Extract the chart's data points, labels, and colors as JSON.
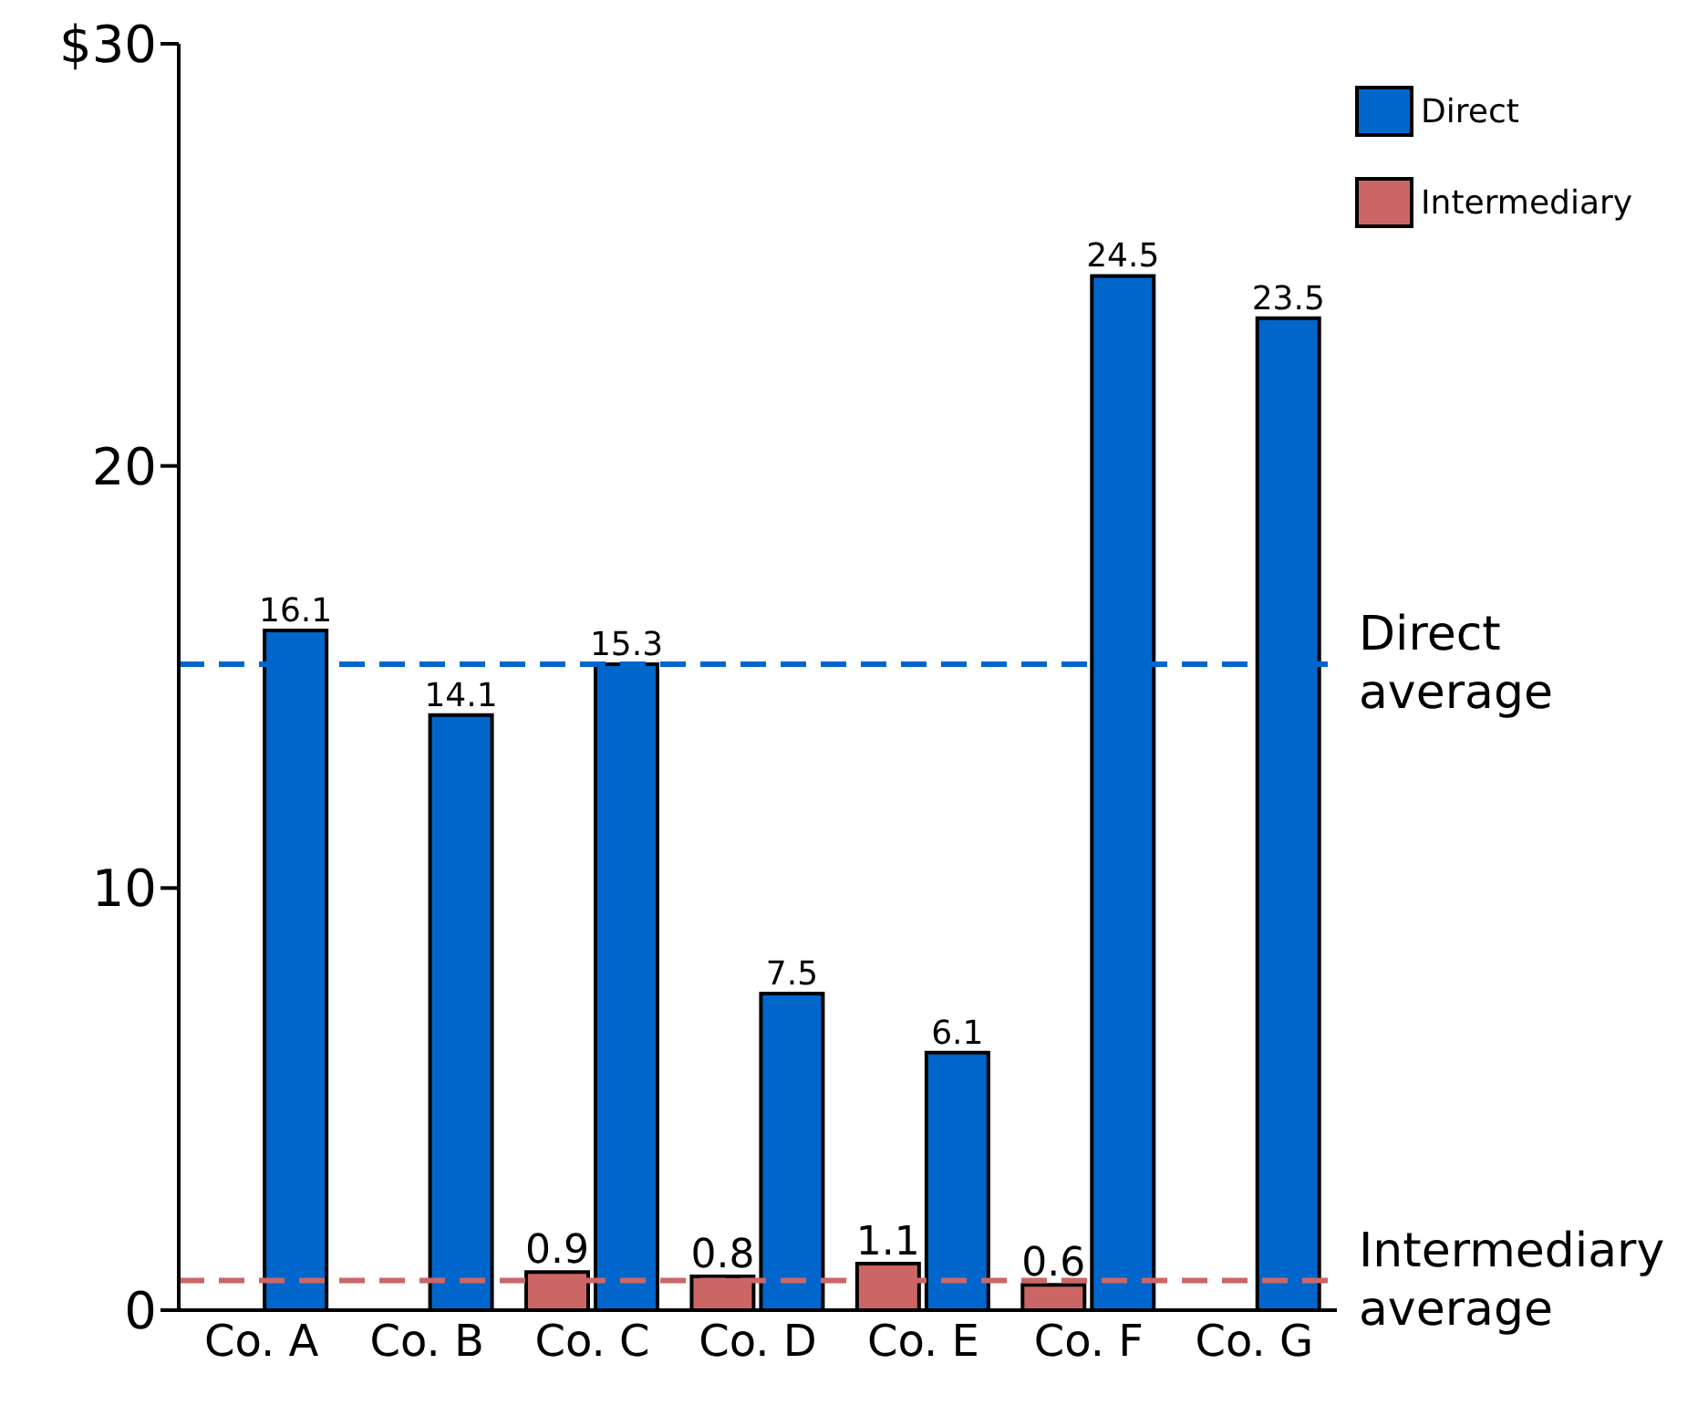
{
  "chart_data": {
    "type": "bar",
    "categories": [
      "Co. A",
      "Co. B",
      "Co. C",
      "Co. D",
      "Co. E",
      "Co. F",
      "Co. G"
    ],
    "series": [
      {
        "name": "Direct",
        "color": "#0066cc",
        "values": [
          16.1,
          14.1,
          15.3,
          7.5,
          6.1,
          24.5,
          23.5
        ]
      },
      {
        "name": "Intermediary",
        "color": "#cc6666",
        "values": [
          null,
          null,
          0.9,
          0.8,
          1.1,
          0.6,
          null
        ]
      }
    ],
    "ylim": [
      0,
      30
    ],
    "yticks": [
      0,
      10,
      20,
      {
        "value": 30,
        "label": "$30"
      }
    ],
    "ref_lines": [
      {
        "axis": "y",
        "value": 15.3,
        "label": "Direct average",
        "color": "#0066cc",
        "line_style": "dashed"
      },
      {
        "axis": "y",
        "value": 0.7,
        "label": "Intermediary average",
        "color": "#cc6666",
        "line_style": "dashed"
      }
    ],
    "data_labels": true,
    "grid": false,
    "legend": "top right"
  }
}
